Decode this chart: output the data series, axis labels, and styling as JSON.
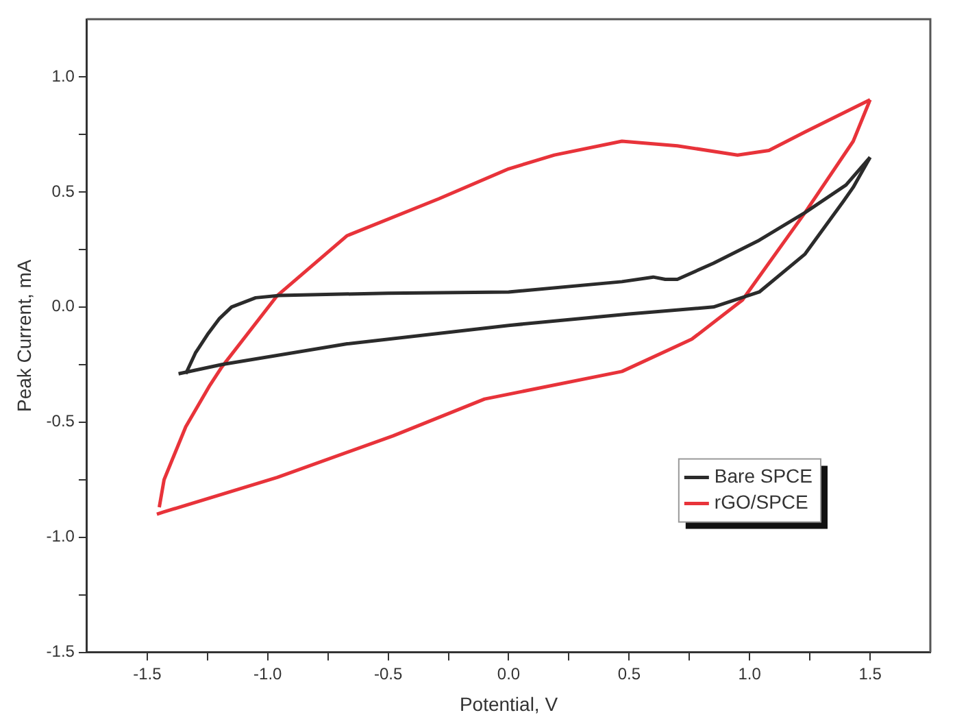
{
  "chart_data": {
    "type": "line",
    "xlabel": "Potential, V",
    "ylabel": "Peak Current, mA",
    "xlim": [
      -1.75,
      1.75
    ],
    "xticks": [
      {
        "value": -1.5,
        "label": "-1.5"
      },
      {
        "value": -1.25,
        "label": null
      },
      {
        "value": -1.0,
        "label": "-1.0"
      },
      {
        "value": -0.75,
        "label": null
      },
      {
        "value": -0.5,
        "label": "-0.5"
      },
      {
        "value": -0.25,
        "label": null
      },
      {
        "value": 0,
        "label": "0.0"
      },
      {
        "value": 0.25,
        "label": null
      },
      {
        "value": 0.5,
        "label": "0.5"
      },
      {
        "value": 0.75,
        "label": null
      },
      {
        "value": 1.0,
        "label": "1.0"
      },
      {
        "value": 1.25,
        "label": null
      },
      {
        "value": 1.5,
        "label": "1.5"
      }
    ],
    "ylim": [
      -1.5,
      1.25
    ],
    "yticks": [
      {
        "value": -1.5,
        "label": "-1.5"
      },
      {
        "value": -1.25,
        "label": null
      },
      {
        "value": -1.0,
        "label": "-1.0"
      },
      {
        "value": -0.75,
        "label": null
      },
      {
        "value": -0.5,
        "label": "-0.5"
      },
      {
        "value": -0.25,
        "label": null
      },
      {
        "value": 0,
        "label": "0.0"
      },
      {
        "value": 0.25,
        "label": null
      },
      {
        "value": 0.5,
        "label": "0.5"
      },
      {
        "value": 0.75,
        "label": null
      },
      {
        "value": 1.0,
        "label": "1.0"
      }
    ],
    "grid": false,
    "legend": "bottom right",
    "marker": "none",
    "line_style": "solid",
    "series": [
      {
        "name": "Bare SPCE",
        "color": "#2b2b2b",
        "x": [
          -1.34,
          -1.3,
          -1.25,
          -1.2,
          -1.15,
          -1.05,
          -0.95,
          -0.5,
          0.0,
          0.47,
          0.6,
          0.65,
          0.7,
          0.85,
          1.04,
          1.23,
          1.4,
          1.5
        ],
        "values": [
          -0.29,
          -0.2,
          -0.12,
          -0.05,
          0.0,
          0.04,
          0.05,
          0.06,
          0.065,
          0.11,
          0.13,
          0.12,
          0.12,
          0.19,
          0.29,
          0.41,
          0.53,
          0.65
        ]
      },
      {
        "color": "#2b2b2b",
        "x": [
          -1.37,
          -1.19,
          -0.67,
          0.0,
          0.5,
          0.85,
          1.04,
          1.23,
          1.39,
          1.43,
          1.5
        ],
        "values": [
          -0.29,
          -0.25,
          -0.16,
          -0.08,
          -0.03,
          0.0,
          0.065,
          0.23,
          0.46,
          0.52,
          0.65
        ]
      },
      {
        "name": "rGO/SPCE",
        "color": "#e8333a",
        "x": [
          -1.45,
          -1.43,
          -1.34,
          -1.24,
          -1.19,
          -0.96,
          -0.67,
          -0.29,
          0.0,
          0.19,
          0.47,
          0.7,
          0.95,
          1.08,
          1.23,
          1.5
        ],
        "values": [
          -0.87,
          -0.75,
          -0.52,
          -0.34,
          -0.26,
          0.05,
          0.31,
          0.47,
          0.6,
          0.66,
          0.72,
          0.7,
          0.66,
          0.68,
          0.76,
          0.9
        ]
      },
      {
        "color": "#e8333a",
        "x": [
          -1.46,
          -1.43,
          -0.96,
          -0.48,
          -0.1,
          0.47,
          0.76,
          0.97,
          1.23,
          1.43,
          1.5
        ],
        "values": [
          -0.9,
          -0.89,
          -0.74,
          -0.56,
          -0.4,
          -0.28,
          -0.14,
          0.03,
          0.41,
          0.72,
          0.9
        ]
      }
    ]
  }
}
